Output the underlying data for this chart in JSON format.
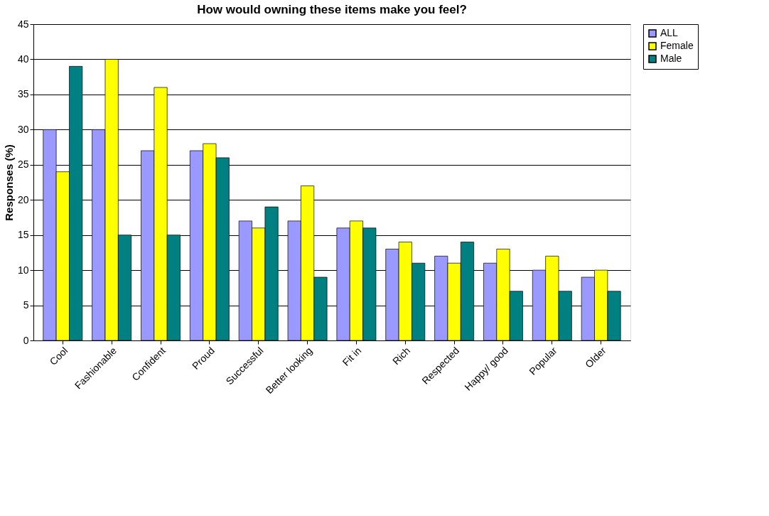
{
  "chart_data": {
    "type": "bar",
    "title": "How would owning these items make you feel?",
    "ylabel": "Responses (%)",
    "categories": [
      "Cool",
      "Fashionable",
      "Confident",
      "Proud",
      "Successful",
      "Better looking",
      "Fit in",
      "Rich",
      "Respected",
      "Happy/ good",
      "Popular",
      "Older"
    ],
    "series": [
      {
        "name": "ALL",
        "color": "#9999ff",
        "values": [
          30,
          30,
          27,
          27,
          17,
          17,
          16,
          13,
          12,
          11,
          10,
          9
        ]
      },
      {
        "name": "Female",
        "color": "#ffff00",
        "values": [
          24,
          40,
          36,
          28,
          16,
          22,
          17,
          14,
          11,
          13,
          12,
          10
        ]
      },
      {
        "name": "Male",
        "color": "#008080",
        "values": [
          39,
          15,
          15,
          26,
          19,
          9,
          16,
          11,
          14,
          7,
          7,
          7
        ]
      }
    ],
    "ylim": [
      0,
      45
    ],
    "yticks": [
      0,
      5,
      10,
      15,
      20,
      25,
      30,
      35,
      40,
      45
    ],
    "grid": "y",
    "legend": "right"
  }
}
